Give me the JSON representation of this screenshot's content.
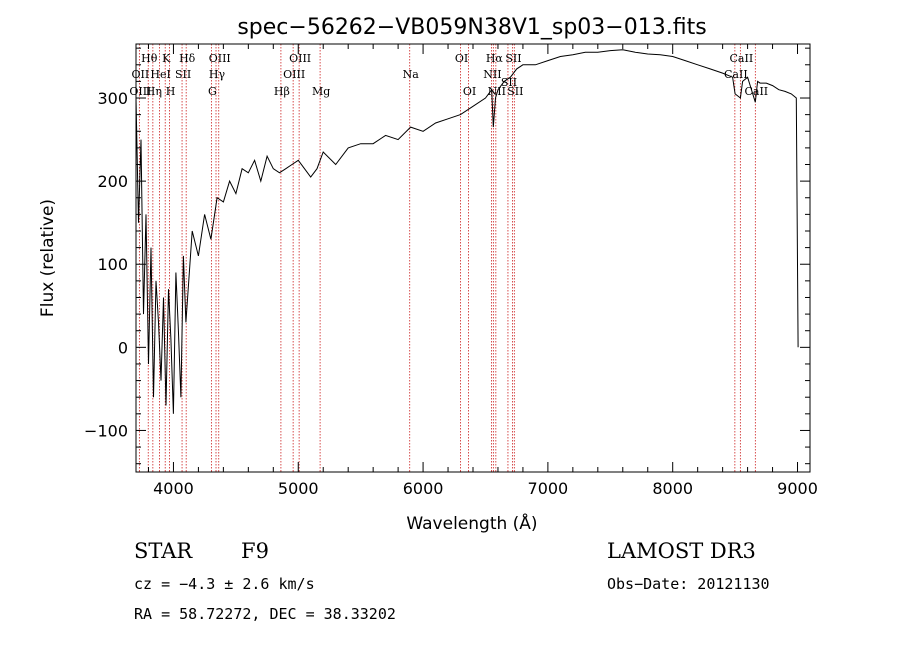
{
  "chart_data": {
    "type": "line",
    "title": "spec−56262−VB059N38V1_sp03−013.fits",
    "xlabel": "Wavelength (Å)",
    "ylabel": "Flux (relative)",
    "xlim": [
      3700,
      9100
    ],
    "ylim": [
      -150,
      365
    ],
    "x_ticks": [
      4000,
      5000,
      6000,
      7000,
      8000,
      9000
    ],
    "y_ticks": [
      -100,
      0,
      100,
      200,
      300
    ],
    "x_tick_labels": [
      "4000",
      "5000",
      "6000",
      "7000",
      "8000",
      "9000"
    ],
    "y_tick_labels": [
      "−100",
      "0",
      "100",
      "200",
      "300"
    ],
    "series": [
      {
        "name": "flux",
        "x": [
          3700,
          3720,
          3740,
          3760,
          3780,
          3800,
          3820,
          3840,
          3860,
          3880,
          3900,
          3920,
          3940,
          3960,
          3980,
          4000,
          4020,
          4040,
          4060,
          4080,
          4100,
          4150,
          4200,
          4250,
          4300,
          4350,
          4400,
          4450,
          4500,
          4550,
          4600,
          4650,
          4700,
          4750,
          4800,
          4850,
          4900,
          4950,
          5000,
          5050,
          5100,
          5150,
          5200,
          5300,
          5400,
          5500,
          5600,
          5700,
          5800,
          5900,
          6000,
          6100,
          6200,
          6300,
          6400,
          6500,
          6550,
          6563,
          6580,
          6600,
          6650,
          6700,
          6750,
          6800,
          6900,
          7000,
          7100,
          7200,
          7300,
          7400,
          7500,
          7600,
          7700,
          7800,
          7900,
          8000,
          8100,
          8200,
          8300,
          8400,
          8480,
          8500,
          8542,
          8560,
          8600,
          8662,
          8680,
          8700,
          8750,
          8800,
          8850,
          8900,
          8950,
          8990,
          9000,
          9005
        ],
        "y": [
          300,
          150,
          250,
          40,
          160,
          -20,
          120,
          -60,
          80,
          30,
          -40,
          60,
          -70,
          70,
          10,
          -80,
          90,
          20,
          -60,
          110,
          30,
          140,
          110,
          160,
          130,
          180,
          175,
          200,
          185,
          215,
          210,
          225,
          200,
          230,
          215,
          210,
          215,
          220,
          225,
          215,
          205,
          215,
          235,
          220,
          240,
          245,
          245,
          255,
          250,
          265,
          260,
          270,
          275,
          280,
          290,
          300,
          310,
          265,
          300,
          310,
          320,
          325,
          335,
          340,
          340,
          345,
          350,
          352,
          355,
          355,
          357,
          358,
          355,
          353,
          352,
          350,
          345,
          340,
          335,
          330,
          325,
          305,
          300,
          320,
          325,
          295,
          320,
          318,
          318,
          315,
          310,
          308,
          305,
          300,
          100,
          0
        ]
      }
    ],
    "spectral_lines": [
      {
        "name": "Hθ",
        "wl": 3798,
        "row": 0
      },
      {
        "name": "OII",
        "wl": 3727,
        "row": 1
      },
      {
        "name": "OIII",
        "wl": 3727,
        "row": 2
      },
      {
        "name": "Hη",
        "wl": 3835,
        "row": 2
      },
      {
        "name": "HeI",
        "wl": 3889,
        "row": 1
      },
      {
        "name": "K",
        "wl": 3934,
        "row": 0
      },
      {
        "name": "H",
        "wl": 3969,
        "row": 2
      },
      {
        "name": "SII",
        "wl": 4069,
        "row": 1
      },
      {
        "name": "Hδ",
        "wl": 4102,
        "row": 0
      },
      {
        "name": "OIII",
        "wl": 4363,
        "row": 0
      },
      {
        "name": "Hγ",
        "wl": 4341,
        "row": 1
      },
      {
        "name": "G",
        "wl": 4304,
        "row": 2
      },
      {
        "name": "Hβ",
        "wl": 4861,
        "row": 2
      },
      {
        "name": "OIII",
        "wl": 4959,
        "row": 1
      },
      {
        "name": "OIII",
        "wl": 5007,
        "row": 0
      },
      {
        "name": "Mg",
        "wl": 5175,
        "row": 2
      },
      {
        "name": "Na",
        "wl": 5893,
        "row": 1
      },
      {
        "name": "OI",
        "wl": 6300,
        "row": 0
      },
      {
        "name": "OI",
        "wl": 6364,
        "row": 2
      },
      {
        "name": "Hα",
        "wl": 6563,
        "row": 0
      },
      {
        "name": "NII",
        "wl": 6548,
        "row": 1
      },
      {
        "name": "NII",
        "wl": 6583,
        "row": 2
      },
      {
        "name": "SII",
        "wl": 6716,
        "row": 0
      },
      {
        "name": "SII",
        "wl": 6731,
        "row": 2
      },
      {
        "name": "SII",
        "wl": 6680,
        "row": 1.6
      },
      {
        "name": "CaII",
        "wl": 8542,
        "row": 0
      },
      {
        "name": "CaII",
        "wl": 8498,
        "row": 1
      },
      {
        "name": "CaII",
        "wl": 8662,
        "row": 2
      }
    ]
  },
  "info": {
    "object_class": "STAR",
    "subclass": "F9",
    "survey": "LAMOST DR3",
    "cz": "cz = −4.3 ± 2.6 km/s",
    "obs_date": "Obs−Date: 20121130",
    "coords": "RA =  58.72272, DEC =  38.33202"
  },
  "colors": {
    "line_marker": "#cc2222",
    "spectrum": "#000000",
    "axes": "#000000"
  }
}
